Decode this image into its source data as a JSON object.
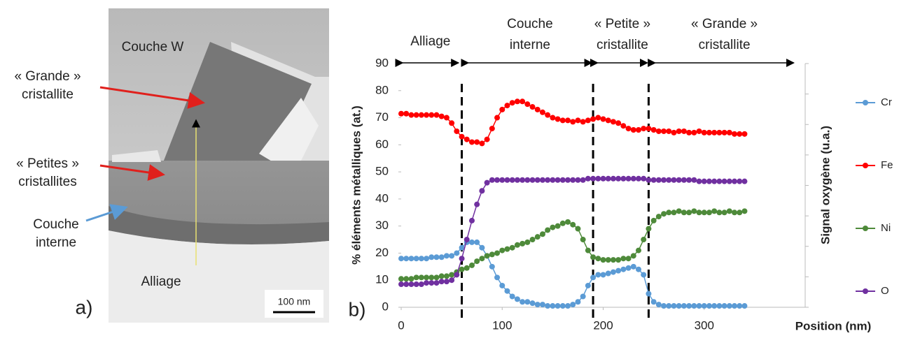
{
  "micrograph": {
    "labels": [
      [
        "Couche W"
      ],
      [
        "« Grande »",
        "cristallite"
      ],
      [
        "« Petites »",
        "cristallites"
      ],
      [
        "Couche",
        "interne"
      ],
      [
        "Alliage"
      ]
    ],
    "scale_bar": "100 nm",
    "panel": "a)"
  },
  "chart_data": {
    "type": "line",
    "panel": "b)",
    "markers": true,
    "x_label": "Position (nm)",
    "y_label": "% éléments métalliques (at.)",
    "y2_label": "Signal oxygène (u.a.)",
    "xlim": [
      0,
      400
    ],
    "xticks": [
      0,
      100,
      200,
      300
    ],
    "ylim": [
      0,
      90
    ],
    "yticks": [
      0,
      10,
      20,
      30,
      40,
      50,
      60,
      70,
      80,
      90
    ],
    "legend": "right",
    "dividers": [
      60,
      190,
      245
    ],
    "regions": [
      {
        "label": [
          "Alliage"
        ],
        "start": 0,
        "end": 58
      },
      {
        "label": [
          "Couche",
          "interne"
        ],
        "start": 65,
        "end": 190
      },
      {
        "label": [
          "« Petite »",
          "cristallite"
        ],
        "start": 193,
        "end": 245
      },
      {
        "label": [
          "« Grande »",
          "cristallite"
        ],
        "start": 250,
        "end": 390
      }
    ],
    "x": [
      0,
      5,
      10,
      15,
      20,
      25,
      30,
      35,
      40,
      45,
      50,
      55,
      60,
      65,
      70,
      75,
      80,
      85,
      90,
      95,
      100,
      105,
      110,
      115,
      120,
      125,
      130,
      135,
      140,
      145,
      150,
      155,
      160,
      165,
      170,
      175,
      180,
      185,
      190,
      195,
      200,
      205,
      210,
      215,
      220,
      225,
      230,
      235,
      240,
      245,
      250,
      255,
      260,
      265,
      270,
      275,
      280,
      285,
      290,
      295,
      300,
      305,
      310,
      315,
      320,
      325,
      330,
      335,
      340
    ],
    "series": [
      {
        "name": "Cr",
        "color": "#5b9bd5",
        "values": [
          18,
          18,
          18,
          18,
          18,
          18,
          18.5,
          18.5,
          18.5,
          19,
          19,
          20,
          22,
          24,
          24,
          24,
          22,
          19,
          15,
          11,
          8,
          6,
          4,
          3,
          2,
          2,
          1.5,
          1,
          1,
          0.5,
          0.5,
          0.5,
          0.5,
          0.5,
          1,
          2,
          4,
          8,
          11,
          12,
          12,
          12.5,
          13,
          13.5,
          14,
          14.5,
          15,
          14,
          12,
          5,
          2,
          1,
          0.5,
          0.5,
          0.5,
          0.5,
          0.5,
          0.5,
          0.5,
          0.5,
          0.5,
          0.5,
          0.5,
          0.5,
          0.5,
          0.5,
          0.5,
          0.5,
          0.5
        ]
      },
      {
        "name": "Fe",
        "color": "#ff0000",
        "values": [
          71.5,
          71.5,
          71,
          71,
          71,
          71,
          71,
          71,
          70.5,
          70,
          68,
          65,
          63,
          62,
          61,
          61,
          60.5,
          62,
          66,
          70,
          73,
          74.5,
          75.5,
          76,
          76,
          75,
          74,
          73,
          72,
          71,
          70,
          69.5,
          69,
          69,
          68.5,
          69,
          68.5,
          69,
          69.5,
          70,
          69.5,
          69,
          68.5,
          68,
          67,
          66,
          65.5,
          65.5,
          66,
          66,
          65.5,
          65,
          65,
          65,
          64.5,
          65,
          65,
          64.5,
          64.5,
          65,
          64.5,
          64.5,
          64.5,
          64.5,
          64.5,
          64.5,
          64,
          64,
          64
        ]
      },
      {
        "name": "Ni",
        "color": "#4e8a3a",
        "values": [
          10.5,
          10.5,
          10.5,
          11,
          11,
          11,
          11,
          11,
          11.5,
          11.5,
          12,
          13,
          14,
          14.5,
          15.5,
          17,
          18,
          19,
          19.5,
          20,
          21,
          21.5,
          22,
          23,
          23.5,
          24,
          25,
          26,
          27,
          28.5,
          29.5,
          30,
          31,
          31.5,
          30.5,
          29,
          25,
          21,
          18.5,
          18,
          17.5,
          17.5,
          17.5,
          17.5,
          18,
          18,
          19,
          21,
          25,
          29,
          32,
          33.5,
          34.5,
          35,
          35,
          35.5,
          35,
          35,
          35.5,
          35,
          35,
          35,
          35.5,
          35,
          35,
          35.5,
          35,
          35,
          35.5
        ]
      },
      {
        "name": "O",
        "color": "#7030a0",
        "values": [
          8.5,
          8.5,
          8.5,
          8.5,
          8.5,
          9,
          9,
          9,
          9.5,
          9.5,
          10,
          12,
          18,
          25,
          32,
          38,
          43,
          46,
          47,
          47,
          47,
          47,
          47,
          47,
          47,
          47,
          47,
          47,
          47,
          47,
          47,
          47,
          47,
          47,
          47,
          47,
          47,
          47.5,
          47.5,
          47.5,
          47.5,
          47.5,
          47.5,
          47.5,
          47.5,
          47.5,
          47.5,
          47.5,
          47.5,
          47,
          47,
          47,
          47,
          47,
          47,
          47,
          47,
          47,
          47,
          46.5,
          46.5,
          46.5,
          46.5,
          46.5,
          46.5,
          46.5,
          46.5,
          46.5,
          46.5
        ]
      }
    ]
  }
}
